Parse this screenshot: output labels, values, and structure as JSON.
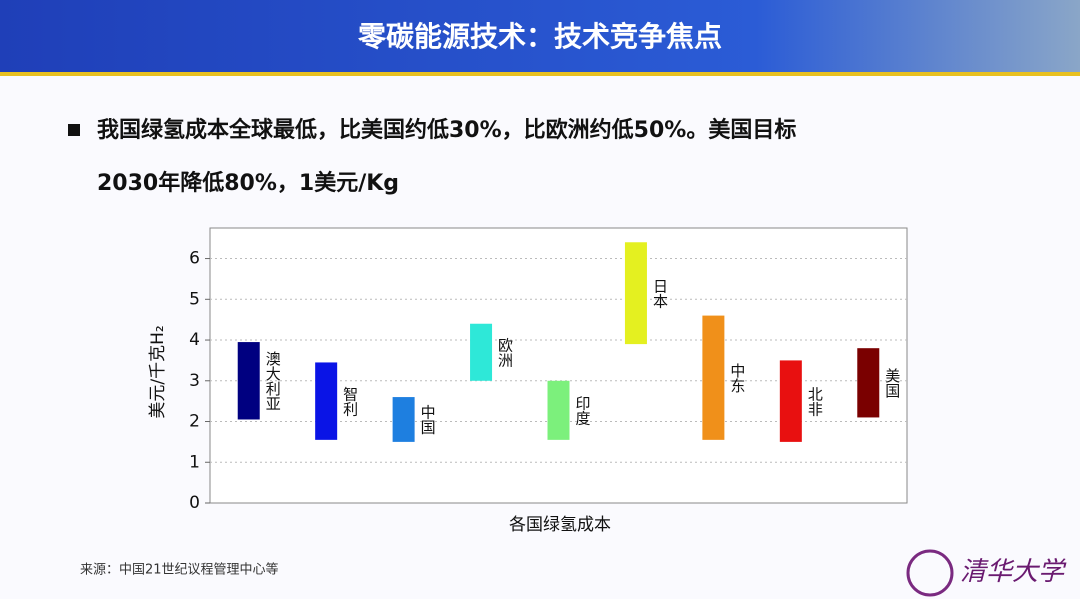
{
  "header": {
    "title": "零碳能源技术：技术竞争焦点"
  },
  "bullet": [
    "我国绿氢成本全球最低，比美国约低30%，比欧洲约低50%。美国目标",
    "2030年降低80%，1美元/Kg"
  ],
  "chart_data": {
    "type": "floating-bar",
    "xlabel": "各国绿氢成本",
    "ylabel": "美元/千克H₂",
    "categories": [
      "澳大利亚",
      "智利",
      "中国",
      "欧洲",
      "印度",
      "日本",
      "中东",
      "北非",
      "美国"
    ],
    "low": [
      2.05,
      1.55,
      1.5,
      3.0,
      1.55,
      3.9,
      1.55,
      1.5,
      2.1
    ],
    "high": [
      3.95,
      3.45,
      2.6,
      4.4,
      3.0,
      6.4,
      4.6,
      3.5,
      3.8
    ],
    "colors": [
      "#000080",
      "#0a14e6",
      "#1e7fe0",
      "#2ee8d8",
      "#7cf07c",
      "#e4f020",
      "#f0901a",
      "#e81010",
      "#7a0000"
    ],
    "ylim": [
      0,
      6.75
    ],
    "yticks": [
      0,
      1,
      2,
      3,
      4,
      5,
      6
    ],
    "grid": true
  },
  "footer": {
    "source": "来源：中国21世纪议程管理中心等",
    "logo": "清华大学"
  }
}
